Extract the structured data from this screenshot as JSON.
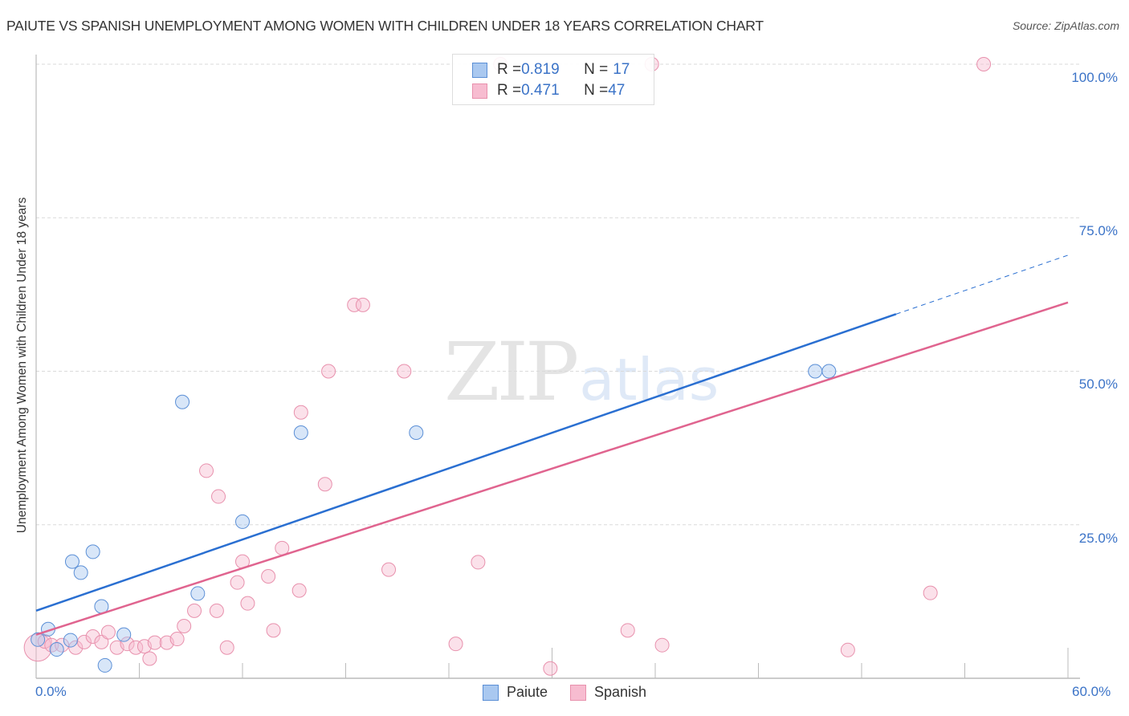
{
  "header": {
    "title": "PAIUTE VS SPANISH UNEMPLOYMENT AMONG WOMEN WITH CHILDREN UNDER 18 YEARS CORRELATION CHART",
    "source": "Source: ZipAtlas.com"
  },
  "watermark": {
    "zip": "ZIP",
    "atlas": "atlas"
  },
  "axes": {
    "ylabel": "Unemployment Among Women with Children Under 18 years",
    "y_ticks": [
      "100.0%",
      "75.0%",
      "50.0%",
      "25.0%"
    ],
    "x_ticks": [
      "0.0%",
      "60.0%"
    ]
  },
  "legend_top": {
    "rows": [
      {
        "r_label": "R = ",
        "r_value": "0.819",
        "n_label": "N = ",
        "n_value": "17",
        "color": "#a9c8f0"
      },
      {
        "r_label": "R = ",
        "r_value": "0.471",
        "n_label": "N = ",
        "n_value": "47",
        "color": "#f7bcd0"
      }
    ]
  },
  "legend_bottom": {
    "items": [
      {
        "label": "Paiute",
        "color": "#a9c8f0"
      },
      {
        "label": "Spanish",
        "color": "#f7bcd0"
      }
    ]
  },
  "colors": {
    "paiute_fill": "#a9c8f0",
    "paiute_stroke": "#5b8fd6",
    "paiute_line": "#2a6fd1",
    "spanish_fill": "#f7bcd0",
    "spanish_stroke": "#e891ad",
    "spanish_line": "#e0648f",
    "tick_label": "#3b73c7"
  },
  "chart_data": {
    "type": "scatter",
    "title": "PAIUTE VS SPANISH UNEMPLOYMENT AMONG WOMEN WITH CHILDREN UNDER 18 YEARS CORRELATION CHART",
    "xlabel": "",
    "ylabel": "Unemployment Among Women with Children Under 18 years",
    "xlim": [
      0,
      60
    ],
    "ylim": [
      0,
      100
    ],
    "x_tick_labels": [
      "0.0%",
      "60.0%"
    ],
    "y_tick_labels": [
      "25.0%",
      "50.0%",
      "75.0%",
      "100.0%"
    ],
    "grid": "horizontal dashed",
    "legend_position": "bottom",
    "series": [
      {
        "name": "Paiute",
        "R": 0.819,
        "N": 17,
        "points": [
          [
            0.1,
            6.3
          ],
          [
            0.7,
            8.0
          ],
          [
            1.2,
            4.7
          ],
          [
            2.0,
            6.2
          ],
          [
            2.1,
            19.0
          ],
          [
            2.6,
            17.2
          ],
          [
            3.3,
            20.6
          ],
          [
            3.8,
            11.7
          ],
          [
            4.0,
            2.1
          ],
          [
            5.1,
            7.1
          ],
          [
            8.5,
            45.0
          ],
          [
            9.4,
            13.8
          ],
          [
            12.0,
            25.5
          ],
          [
            15.4,
            40.0
          ],
          [
            22.1,
            40.0
          ],
          [
            45.3,
            50.0
          ],
          [
            46.1,
            50.0
          ]
        ],
        "trendline": {
          "x": [
            0,
            50,
            60
          ],
          "y": [
            11.0,
            59.3,
            68.9
          ],
          "dashed_from_x": 50
        }
      },
      {
        "name": "Spanish",
        "R": 0.471,
        "N": 47,
        "points": [
          [
            0.1,
            5.0
          ],
          [
            0.5,
            6.0
          ],
          [
            0.9,
            5.4
          ],
          [
            1.5,
            5.4
          ],
          [
            2.3,
            5.0
          ],
          [
            2.8,
            5.9
          ],
          [
            3.3,
            6.8
          ],
          [
            3.8,
            5.9
          ],
          [
            4.2,
            7.5
          ],
          [
            4.7,
            5.0
          ],
          [
            5.3,
            5.6
          ],
          [
            5.8,
            5.0
          ],
          [
            6.3,
            5.2
          ],
          [
            6.6,
            3.2
          ],
          [
            6.9,
            5.8
          ],
          [
            7.6,
            5.8
          ],
          [
            8.2,
            6.4
          ],
          [
            8.6,
            8.5
          ],
          [
            9.2,
            11.0
          ],
          [
            9.9,
            33.8
          ],
          [
            10.5,
            11.0
          ],
          [
            11.1,
            5.0
          ],
          [
            10.6,
            29.6
          ],
          [
            11.7,
            15.6
          ],
          [
            12.0,
            19.0
          ],
          [
            12.3,
            12.2
          ],
          [
            13.5,
            16.6
          ],
          [
            13.8,
            7.8
          ],
          [
            14.3,
            21.2
          ],
          [
            15.3,
            14.3
          ],
          [
            15.4,
            43.3
          ],
          [
            16.8,
            31.6
          ],
          [
            17.0,
            50.0
          ],
          [
            18.5,
            60.8
          ],
          [
            19.0,
            60.8
          ],
          [
            20.5,
            17.7
          ],
          [
            21.4,
            50.0
          ],
          [
            24.4,
            5.6
          ],
          [
            25.7,
            18.9
          ],
          [
            27.0,
            100.0
          ],
          [
            29.9,
            1.6
          ],
          [
            34.4,
            7.8
          ],
          [
            35.8,
            100.0
          ],
          [
            36.4,
            5.4
          ],
          [
            47.2,
            4.6
          ],
          [
            52.0,
            13.9
          ],
          [
            55.1,
            100.0
          ]
        ],
        "trendline": {
          "x": [
            0,
            60
          ],
          "y": [
            7.1,
            61.2
          ]
        }
      }
    ]
  }
}
